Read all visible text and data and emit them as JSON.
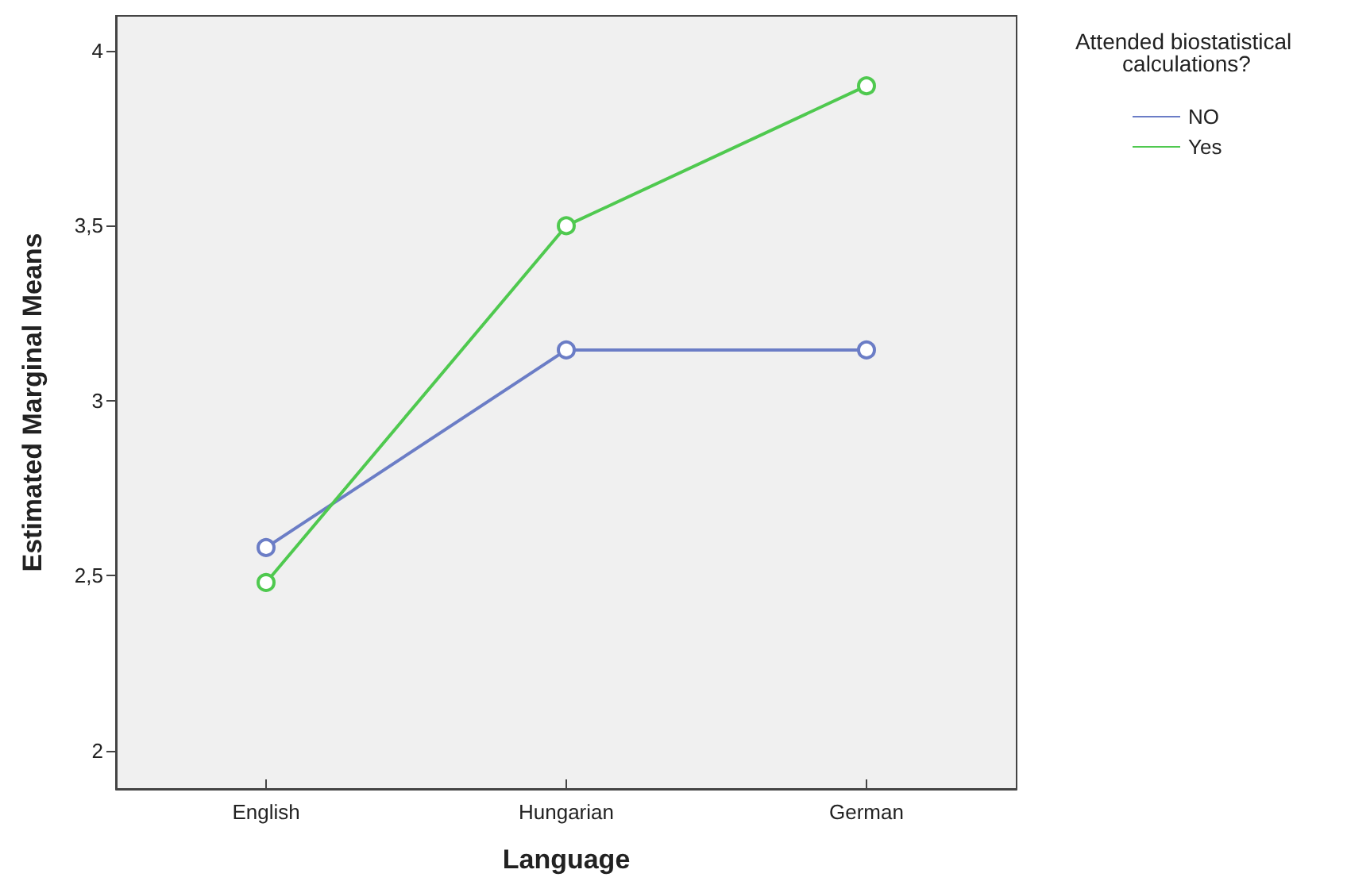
{
  "chart_data": {
    "type": "line",
    "xlabel": "Language",
    "ylabel": "Estimated Marginal Means",
    "legend_title": "Attended biostatistical calculations?",
    "categories": [
      "English",
      "Hungarian",
      "German"
    ],
    "series": [
      {
        "name": "NO",
        "color": "#6b7dc6",
        "values": [
          2.58,
          3.145,
          3.145
        ]
      },
      {
        "name": "Yes",
        "color": "#4fc94f",
        "values": [
          2.48,
          3.5,
          3.9
        ]
      }
    ],
    "ylim": [
      1.89,
      4.1
    ],
    "yticks": [
      2,
      {
        "value": 2.5,
        "label": "2,5"
      },
      3,
      {
        "value": 3.5,
        "label": "3,5"
      },
      4
    ],
    "grid": false,
    "legend": "right",
    "marker": "circle",
    "line_style": "solid"
  }
}
